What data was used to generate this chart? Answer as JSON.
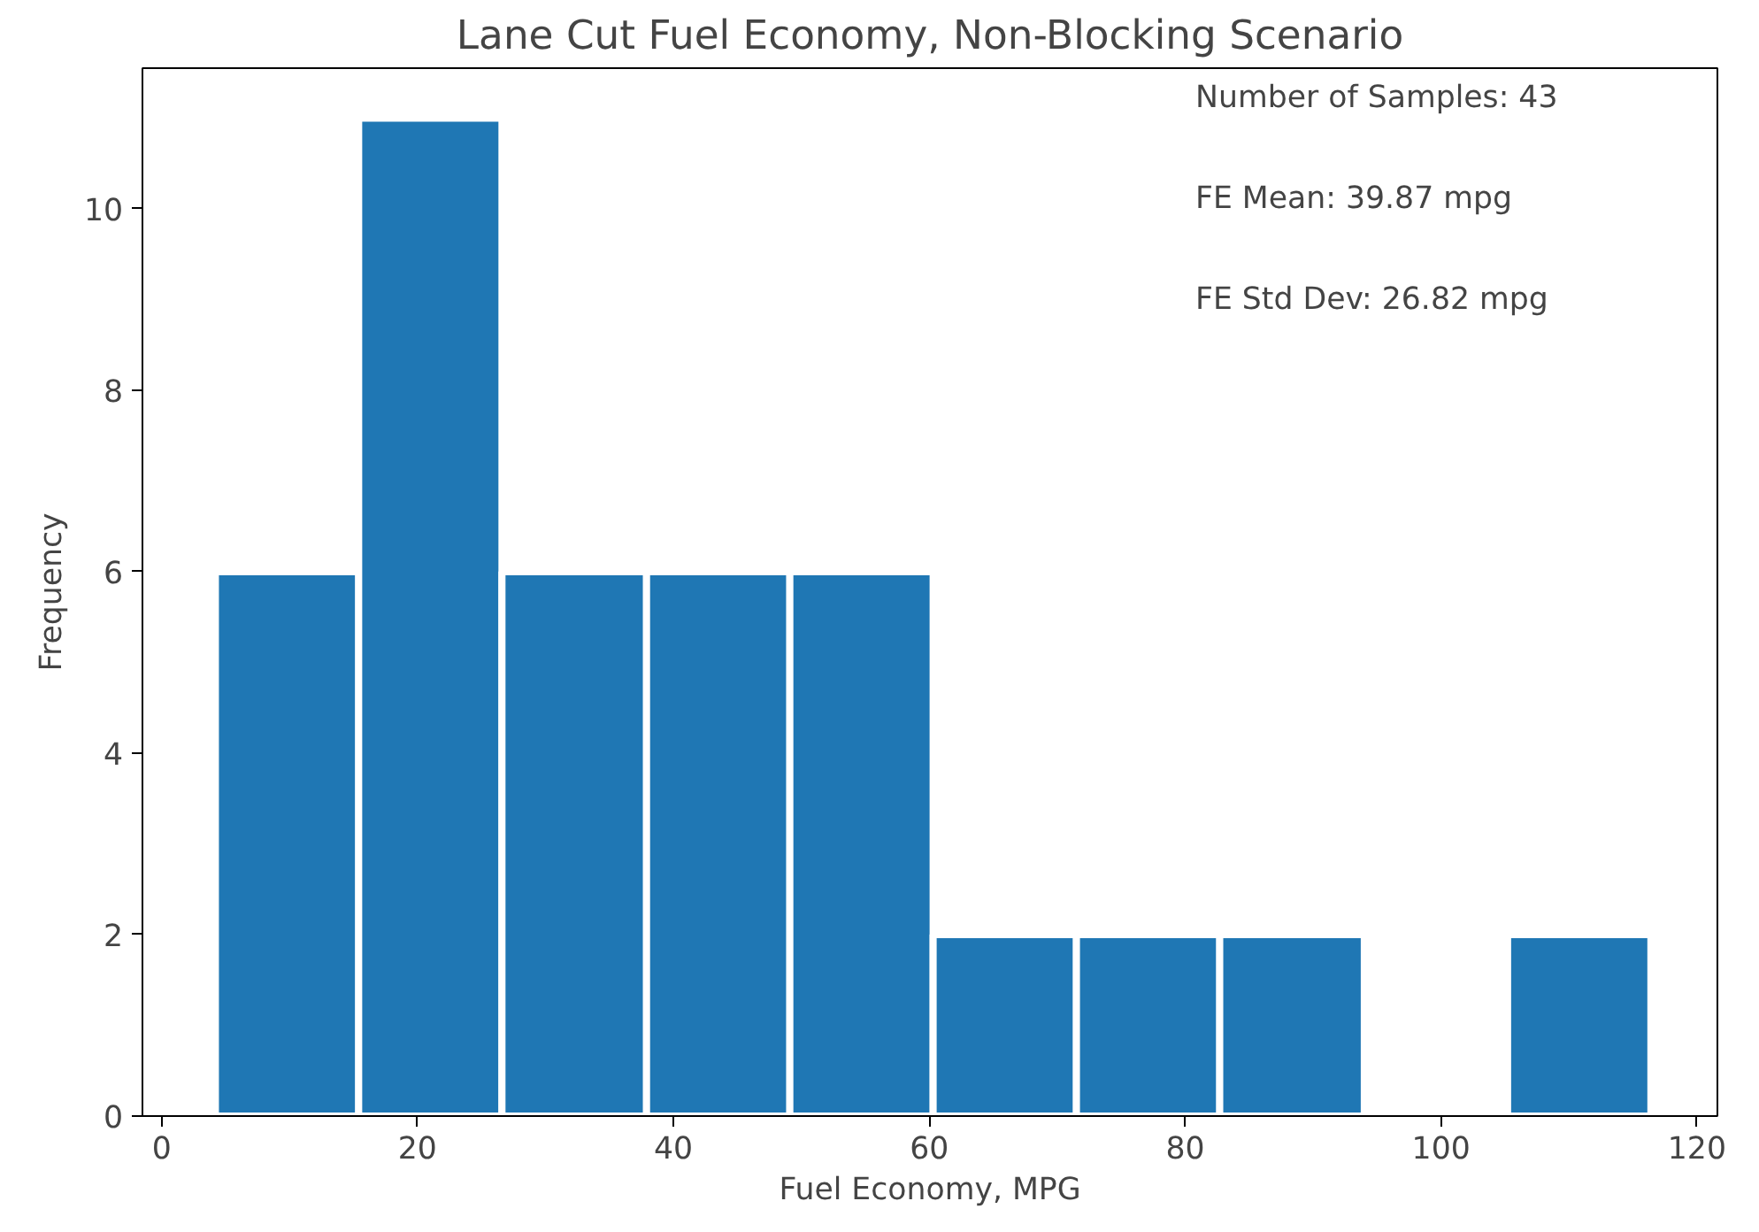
{
  "chart_data": {
    "type": "histogram",
    "title": "Lane Cut Fuel Economy, Non-Blocking Scenario",
    "xlabel": "Fuel Economy, MPG",
    "ylabel": "Frequency",
    "bins": [
      4.2,
      15.4,
      26.6,
      37.9,
      49.1,
      60.3,
      71.5,
      82.7,
      94.0,
      105.2,
      116.4
    ],
    "values": [
      6,
      11,
      6,
      6,
      6,
      2,
      2,
      2,
      0,
      2
    ],
    "color": "#1f77b4",
    "xlim": [
      -1.5,
      121.6
    ],
    "ylim": [
      0,
      11.55
    ],
    "xticks": [
      0,
      20,
      40,
      60,
      80,
      100,
      120
    ],
    "yticks": [
      0,
      2,
      4,
      6,
      8,
      10
    ],
    "annotations": [
      "Number of Samples: 43",
      "FE Mean: 39.87 mpg",
      "FE Std Dev: 26.82 mpg"
    ],
    "grid": false
  }
}
